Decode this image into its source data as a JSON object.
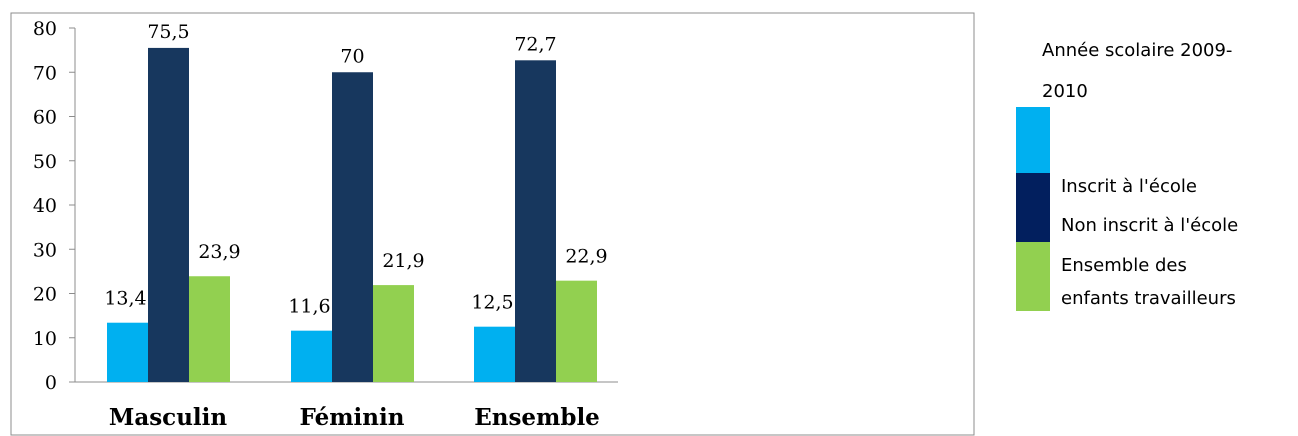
{
  "chart_data": {
    "type": "bar",
    "categories": [
      "Masculin",
      "Féminin",
      "Ensemble"
    ],
    "series": [
      {
        "name": "Inscrit à l'école",
        "values": [
          13.4,
          11.6,
          12.5
        ],
        "color": "#00b0f0"
      },
      {
        "name": "Non inscrit à l'école",
        "values": [
          75.5,
          70,
          72.7
        ],
        "color": "#17375e"
      },
      {
        "name": "Ensemble des enfants travailleurs",
        "values": [
          23.9,
          21.9,
          22.9
        ],
        "color": "#92d050"
      }
    ],
    "data_labels": [
      [
        "13,4",
        "11,6",
        "12,5"
      ],
      [
        "75,5",
        "70",
        "72,7"
      ],
      [
        "23,9",
        "21,9",
        "22,9"
      ]
    ],
    "y_ticks": [
      "0",
      "10",
      "20",
      "30",
      "40",
      "50",
      "60",
      "70",
      "80"
    ],
    "ylim": [
      0,
      80
    ],
    "legend": {
      "title_lines": [
        "Année scolaire 2009-",
        "2010"
      ],
      "entries": [
        {
          "lines": [
            "Inscrit à l'école"
          ],
          "color": "#00b0f0"
        },
        {
          "lines": [
            "Non inscrit à l'école"
          ],
          "color": "#021f5e"
        },
        {
          "lines": [
            "Ensemble des",
            "enfants travailleurs"
          ],
          "color": "#92d050"
        }
      ],
      "position": "right"
    },
    "grid": false
  }
}
